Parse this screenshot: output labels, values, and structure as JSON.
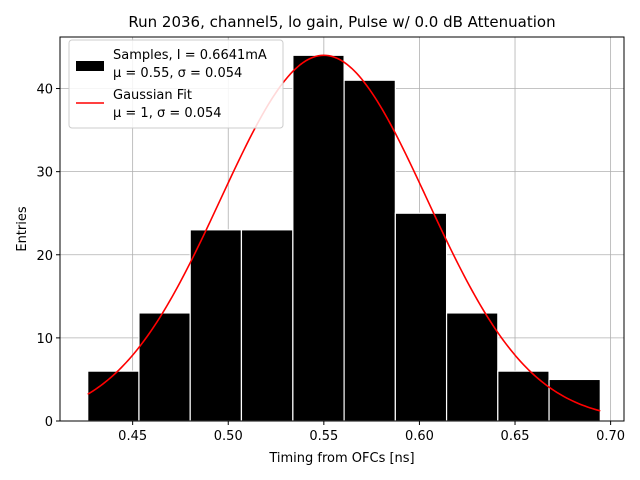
{
  "chart_data": {
    "type": "bar",
    "title": "Run 2036, channel5, lo gain, Pulse w/ 0.0 dB Attenuation",
    "xlabel": "Timing from OFCs [ns]",
    "ylabel": "Entries",
    "xlim": [
      0.412,
      0.707
    ],
    "ylim": [
      0,
      46.2
    ],
    "xticks": [
      0.45,
      0.5,
      0.55,
      0.6,
      0.65,
      0.7
    ],
    "xtick_labels": [
      "0.45",
      "0.50",
      "0.55",
      "0.60",
      "0.65",
      "0.70"
    ],
    "yticks": [
      0,
      10,
      20,
      30,
      40
    ],
    "ytick_labels": [
      "0",
      "10",
      "20",
      "30",
      "40"
    ],
    "grid": true,
    "legend_position": "top-left",
    "histogram": {
      "name": "Samples",
      "color": "#000000",
      "edge_color": "#ffffff",
      "bin_edges": [
        0.4265,
        0.4533,
        0.4801,
        0.5069,
        0.5338,
        0.5606,
        0.5874,
        0.6142,
        0.641,
        0.6678,
        0.6946
      ],
      "values": [
        6,
        13,
        23,
        23,
        44,
        41,
        25,
        13,
        6,
        5
      ]
    },
    "fit": {
      "name": "Gaussian Fit",
      "color": "#ff0000",
      "mean": 0.55,
      "sigma": 0.054,
      "amplitude": 44,
      "x_range": [
        0.4265,
        0.6946
      ]
    },
    "legend": [
      {
        "kind": "patch",
        "color": "#000000",
        "line1": "Samples, I = 0.6641mA",
        "line2": "μ = 0.55, σ = 0.054"
      },
      {
        "kind": "line",
        "color": "#ff0000",
        "line1": "Gaussian Fit",
        "line2": "μ = 1, σ = 0.054"
      }
    ]
  }
}
